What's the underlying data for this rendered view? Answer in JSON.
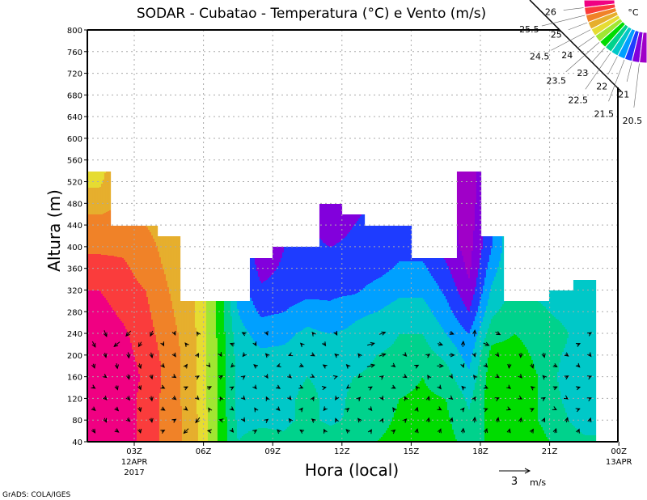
{
  "chart_data": {
    "type": "heatmap",
    "title": "SODAR - Cubatao - Temperatura (°C) e Vento (m/s)",
    "xlabel": "Hora (local)",
    "ylabel": "Altura (m)",
    "ylim": [
      40,
      800
    ],
    "xlim_hours": [
      1,
      24
    ],
    "grid": true,
    "y_ticks": [
      40,
      80,
      120,
      160,
      200,
      240,
      280,
      320,
      360,
      400,
      440,
      480,
      520,
      560,
      600,
      640,
      680,
      720,
      760,
      800
    ],
    "x_ticks": [
      {
        "hour": 3,
        "label": "03Z",
        "sub1": "12APR",
        "sub2": "2017"
      },
      {
        "hour": 6,
        "label": "06Z"
      },
      {
        "hour": 9,
        "label": "09Z"
      },
      {
        "hour": 12,
        "label": "12Z"
      },
      {
        "hour": 15,
        "label": "15Z"
      },
      {
        "hour": 18,
        "label": "18Z"
      },
      {
        "hour": 21,
        "label": "21Z"
      },
      {
        "hour": 24,
        "label": "00Z",
        "sub1": "13APR"
      }
    ],
    "colorbar": {
      "unit": "°C",
      "levels": [
        "20.5",
        "21",
        "21.5",
        "22",
        "22.5",
        "23",
        "23.5",
        "24",
        "24.5",
        "25",
        "25.5",
        "26"
      ],
      "colors": [
        "#a000c8",
        "#8200dc",
        "#1e3cff",
        "#00a0ff",
        "#00c8c8",
        "#00d28c",
        "#00dc00",
        "#a0e632",
        "#e6dc32",
        "#e6af2d",
        "#f08228",
        "#fa3c3c",
        "#f00082"
      ]
    },
    "column_centers_hours": [
      1.5,
      2.5,
      3.5,
      4.5,
      5.5,
      6.5,
      7.5,
      8.5,
      9.5,
      10.5,
      11.5,
      12.5,
      13.5,
      14.5,
      15.5,
      16.5,
      17.5,
      18.5,
      19.5,
      20.5,
      21.5,
      22.5
    ],
    "column_tops_m": [
      540,
      440,
      440,
      420,
      300,
      300,
      300,
      380,
      400,
      400,
      480,
      460,
      440,
      440,
      380,
      380,
      540,
      420,
      300,
      300,
      320,
      340
    ],
    "profile_heights_m": [
      40,
      80,
      120,
      160,
      200,
      240,
      280,
      320,
      360,
      400,
      440,
      480,
      520,
      560
    ],
    "temperature_profiles": [
      [
        26.4,
        26.4,
        26.4,
        26.4,
        26.4,
        26.3,
        26.2,
        26.0,
        25.7,
        25.4,
        25.2,
        24.8,
        24.4,
        24.2
      ],
      [
        26.3,
        26.3,
        26.3,
        26.3,
        26.2,
        26.1,
        25.9,
        25.7,
        25.6,
        25.4,
        25.1
      ],
      [
        25.8,
        25.8,
        25.8,
        25.9,
        25.8,
        25.7,
        25.6,
        25.5,
        25.3,
        25.2,
        25.0
      ],
      [
        25.3,
        25.3,
        25.3,
        25.3,
        25.3,
        25.2,
        25.1,
        25.0,
        24.9,
        24.8,
        24.7
      ],
      [
        24.8,
        24.8,
        24.7,
        24.7,
        24.7,
        24.7,
        24.6,
        24.6
      ],
      [
        23.6,
        23.6,
        23.6,
        23.6,
        23.6,
        23.6,
        23.6,
        23.6
      ],
      [
        22.5,
        22.4,
        22.3,
        22.3,
        22.3,
        22.2,
        22.0,
        21.8
      ],
      [
        22.7,
        22.4,
        22.2,
        22.2,
        22.1,
        21.8,
        21.4,
        21.1,
        20.8,
        20.5
      ],
      [
        22.6,
        22.4,
        22.3,
        22.2,
        22.1,
        21.9,
        21.5,
        21.2,
        21.1,
        21.0
      ],
      [
        23.0,
        22.6,
        22.7,
        22.5,
        22.2,
        22.1,
        21.8,
        21.3,
        21.2,
        21.1
      ],
      [
        22.8,
        22.4,
        22.3,
        22.3,
        22.2,
        22.0,
        21.6,
        21.4,
        21.2,
        21.0,
        20.8,
        20.6,
        20.5
      ],
      [
        22.8,
        22.6,
        22.6,
        22.5,
        22.3,
        22.1,
        21.9,
        21.4,
        21.2,
        21.1,
        21.0,
        20.9
      ],
      [
        23.0,
        22.8,
        22.7,
        22.6,
        22.5,
        22.3,
        22.0,
        21.7,
        21.3,
        21.2,
        21.1
      ],
      [
        23.2,
        23.1,
        23.0,
        22.8,
        22.6,
        22.5,
        22.2,
        21.9,
        21.6,
        21.3,
        21.2
      ],
      [
        23.3,
        23.2,
        23.1,
        23.0,
        22.7,
        22.5,
        22.2,
        21.9,
        21.6,
        21.3
      ],
      [
        23.2,
        23.1,
        23.0,
        22.7,
        22.4,
        22.0,
        21.7,
        21.4,
        21.1,
        20.8
      ],
      [
        22.8,
        22.6,
        22.4,
        22.1,
        21.8,
        21.5,
        21.0,
        20.6,
        20.4,
        20.3,
        20.2,
        20.1,
        20.0,
        20.0
      ],
      [
        23.1,
        23.2,
        23.3,
        23.3,
        23.2,
        22.8,
        22.4,
        22.1,
        21.8,
        21.5
      ],
      [
        23.2,
        23.2,
        23.3,
        23.3,
        23.2,
        23.0,
        22.8,
        22.6
      ],
      [
        23.2,
        23.0,
        23.0,
        23.0,
        22.9,
        22.8,
        22.6,
        22.4
      ],
      [
        22.8,
        22.6,
        22.5,
        22.4,
        22.5,
        22.6,
        22.4,
        22.3
      ],
      [
        22.6,
        22.3,
        22.2,
        22.2,
        22.3,
        22.3,
        22.2,
        22.2,
        21.8
      ]
    ],
    "wind_heights_m": [
      60,
      100,
      140,
      180,
      220
    ],
    "wind_uv_ms": [
      [
        [
          0.5,
          -0.8
        ],
        [
          0.6,
          -0.5
        ],
        [
          0.5,
          -0.3
        ],
        [
          0.3,
          -0.9
        ],
        [
          0.6,
          -1.2
        ]
      ],
      [
        [
          0.7,
          -0.5
        ],
        [
          0.6,
          -0.6
        ],
        [
          0.3,
          -0.9
        ],
        [
          0.2,
          -1.1
        ],
        [
          -1.2,
          -1.0
        ]
      ],
      [
        [
          0.2,
          -0.8
        ],
        [
          0.2,
          -0.9
        ],
        [
          0.3,
          -0.8
        ],
        [
          0.3,
          -1.0
        ],
        [
          -0.6,
          -1.0
        ]
      ],
      [
        [
          0.6,
          0.3
        ],
        [
          0.7,
          -0.4
        ],
        [
          0.6,
          -0.3
        ],
        [
          0.5,
          -0.6
        ],
        [
          0.3,
          -0.6
        ]
      ],
      [
        [
          -1.0,
          -1.0
        ],
        [
          0.5,
          -0.4
        ],
        [
          0.6,
          0.3
        ],
        [
          0.4,
          0.6
        ],
        [
          -0.4,
          0.5
        ]
      ],
      [
        [
          -0.6,
          0.1
        ],
        [
          -0.3,
          0.5
        ],
        [
          0.8,
          0.4
        ],
        [
          0.3,
          -0.4
        ],
        null
      ],
      [
        [
          0.4,
          -0.5
        ],
        [
          0.5,
          -0.4
        ],
        [
          0.5,
          0.3
        ],
        [
          -0.5,
          -0.5
        ],
        [
          -0.8,
          0.3
        ]
      ],
      [
        [
          0.5,
          0.3
        ],
        [
          -0.3,
          0.5
        ],
        [
          0.4,
          -0.5
        ],
        [
          -0.6,
          0.5
        ],
        [
          0.3,
          -0.6
        ]
      ],
      [
        [
          -0.5,
          0.5
        ],
        [
          0.5,
          -0.5
        ],
        [
          0.6,
          -0.4
        ],
        [
          -0.6,
          -0.2
        ],
        null
      ],
      [
        [
          -0.6,
          0.4
        ],
        [
          0.4,
          0.5
        ],
        [
          0.5,
          -0.2
        ],
        [
          0.7,
          -0.3
        ],
        [
          -0.4,
          0.4
        ]
      ],
      [
        [
          -0.3,
          0.6
        ],
        [
          -0.4,
          -0.5
        ],
        [
          0.5,
          0.1
        ],
        [
          -0.6,
          0.4
        ],
        [
          0.4,
          -0.6
        ]
      ],
      [
        [
          -0.6,
          0.6
        ],
        [
          0.5,
          0.4
        ],
        [
          -0.4,
          -0.3
        ],
        [
          -0.5,
          0.5
        ],
        null
      ],
      [
        [
          0.3,
          0.5
        ],
        [
          0.4,
          -0.5
        ],
        [
          0.5,
          0.3
        ],
        [
          1.6,
          0.4
        ],
        [
          1.5,
          0.4
        ]
      ],
      [
        [
          0.5,
          0.4
        ],
        [
          -0.4,
          0.6
        ],
        [
          0.6,
          -0.3
        ],
        [
          0.5,
          -0.4
        ],
        null
      ],
      [
        [
          0.2,
          0.8
        ],
        [
          0.2,
          0.7
        ],
        [
          -0.4,
          0.5
        ],
        [
          0.6,
          0.3
        ],
        null
      ],
      [
        [
          0.3,
          0.8
        ],
        [
          0.5,
          -0.3
        ],
        [
          0.4,
          -0.5
        ],
        [
          1.3,
          0
        ],
        [
          1.0,
          -0.3
        ]
      ],
      [
        [
          0.1,
          1.0
        ],
        [
          0.4,
          0.5
        ],
        [
          -0.5,
          0.5
        ],
        [
          0.2,
          -0.6
        ],
        [
          0.1,
          1.2
        ]
      ],
      [
        [
          0.3,
          0.9
        ],
        [
          0.5,
          0.2
        ],
        [
          0.6,
          -0.3
        ],
        [
          0.5,
          -0.5
        ],
        [
          1.2,
          -0.5
        ]
      ],
      [
        [
          0.2,
          0.8
        ],
        [
          0.5,
          -0.2
        ],
        [
          0.5,
          -0.4
        ],
        [
          -0.1,
          -0.9
        ],
        null
      ],
      [
        [
          0.4,
          0.7
        ],
        [
          0.6,
          0.3
        ],
        [
          -0.5,
          0.4
        ],
        [
          0.3,
          -0.9
        ],
        null
      ],
      [
        [
          0.3,
          0.9
        ],
        [
          0.4,
          -0.2
        ],
        [
          0.7,
          0.3
        ],
        [
          0.7,
          -0.4
        ],
        null
      ],
      [
        [
          0.3,
          0.7
        ],
        [
          0.5,
          0.2
        ],
        [
          0.6,
          0.2
        ],
        [
          0.5,
          -0.5
        ],
        [
          0.6,
          0.3
        ]
      ]
    ],
    "reference_vector": {
      "value": "3",
      "unit": "m/s",
      "speed_ms": 3
    }
  },
  "footer": {
    "credit": "GrADS: COLA/IGES"
  }
}
